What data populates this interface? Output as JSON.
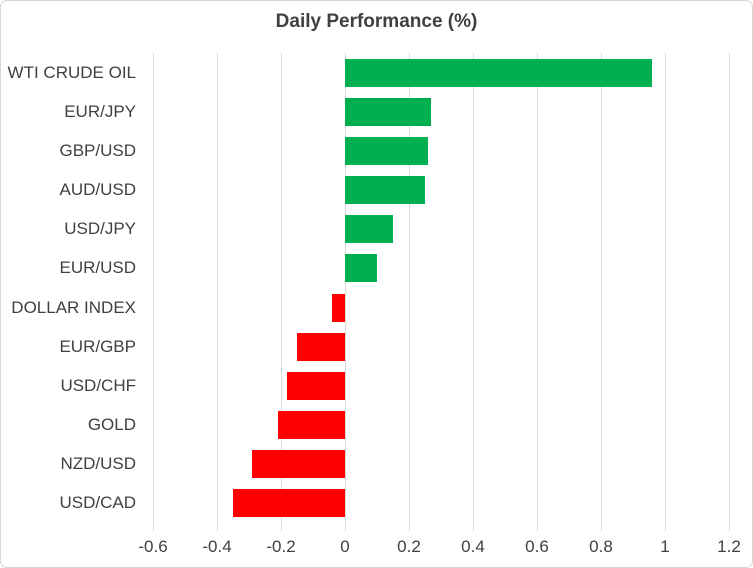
{
  "chart_data": {
    "type": "bar",
    "orientation": "horizontal",
    "title": "Daily Performance (%)",
    "categories": [
      "WTI CRUDE OIL",
      "EUR/JPY",
      "GBP/USD",
      "AUD/USD",
      "USD/JPY",
      "EUR/USD",
      "DOLLAR INDEX",
      "EUR/GBP",
      "USD/CHF",
      "GOLD",
      "NZD/USD",
      "USD/CAD"
    ],
    "values": [
      0.96,
      0.27,
      0.26,
      0.25,
      0.15,
      0.1,
      -0.04,
      -0.15,
      -0.18,
      -0.21,
      -0.29,
      -0.35
    ],
    "xlabel": "",
    "ylabel": "",
    "xlim": [
      -0.6,
      1.2
    ],
    "xticks": [
      -0.6,
      -0.4,
      -0.2,
      0,
      0.2,
      0.4,
      0.6,
      0.8,
      1,
      1.2
    ],
    "xtick_labels": [
      "-0.6",
      "-0.4",
      "-0.2",
      "0",
      "0.2",
      "0.4",
      "0.6",
      "0.8",
      "1",
      "1.2"
    ],
    "grid": "vertical-gridlines-on",
    "legend": "none",
    "colors": {
      "positive_bar": "#00B050",
      "negative_bar": "#FF0000",
      "gridline": "#D9D9D9",
      "text": "#404040",
      "frame_border": "#D7D7D7",
      "background": "#FFFFFF"
    }
  }
}
